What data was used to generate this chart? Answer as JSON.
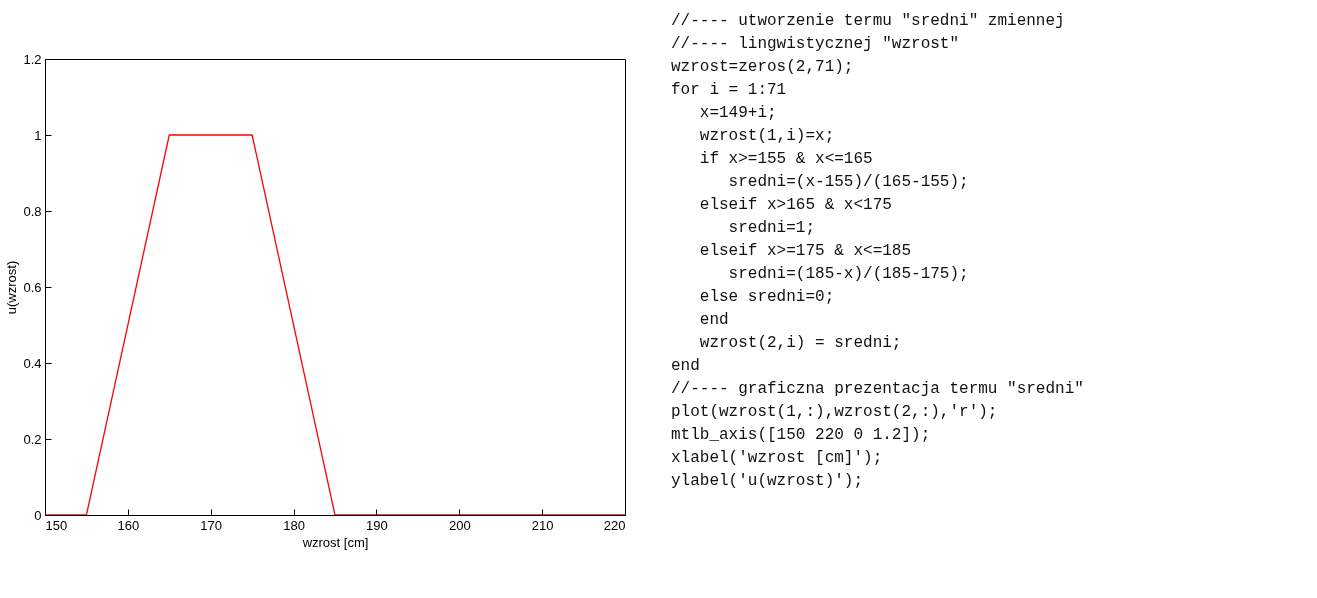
{
  "chart_data": {
    "type": "line",
    "xlabel": "wzrost [cm]",
    "ylabel": "u(wzrost)",
    "x": [
      150,
      155,
      165,
      175,
      185,
      220
    ],
    "series": [
      {
        "color": "#ff0000",
        "values": [
          0,
          0,
          1,
          1,
          0,
          0
        ]
      }
    ],
    "xlim": [
      150,
      220
    ],
    "xticks": [
      150,
      160,
      170,
      180,
      190,
      200,
      210,
      220
    ],
    "ylim": [
      0,
      1.2
    ],
    "yticks": [
      0,
      0.2,
      0.4,
      0.6,
      0.8,
      1,
      1.2
    ],
    "grid": false,
    "marker": "none",
    "line_style": "solid",
    "annotations": [
      "//---- utworzenie termu \"sredni\" zmiennej",
      "//---- lingwistycznej \"wzrost\"",
      "wzrost=zeros(2,71);",
      "for i = 1:71",
      "   x=149+i;",
      "   wzrost(1,i)=x;",
      "   if x>=155 & x<=165",
      "      sredni=(x-155)/(165-155);",
      "   elseif x>165 & x<175",
      "      sredni=1;",
      "   elseif x>=175 & x<=185",
      "      sredni=(185-x)/(185-175);",
      "   else sredni=0;",
      "   end",
      "   wzrost(2,i) = sredni;",
      "end",
      "//---- graficzna prezentacja termu \"sredni\"",
      "plot(wzrost(1,:),wzrost(2,:),'r');",
      "mtlb_axis([150 220 0 1.2]);",
      "xlabel('wzrost [cm]');",
      "ylabel('u(wzrost)');"
    ]
  }
}
